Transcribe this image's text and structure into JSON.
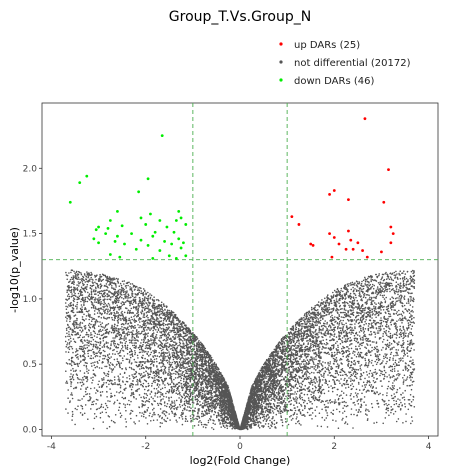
{
  "chart_data": {
    "type": "scatter",
    "title": "Group_T.Vs.Group_N",
    "xlabel": "log2(Fold Change)",
    "ylabel": "-log10(p_value)",
    "xlim": [
      -4.2,
      4.2
    ],
    "ylim": [
      -0.05,
      2.5
    ],
    "xticks": [
      -4,
      -2,
      0,
      2,
      4
    ],
    "yticks": [
      0.0,
      0.5,
      1.0,
      1.5,
      2.0
    ],
    "xtick_labels": [
      "-4",
      "-2",
      "0",
      "2",
      "4"
    ],
    "ytick_labels": [
      "0.0",
      "0.5",
      "1.0",
      "1.5",
      "2.0"
    ],
    "threshold_lines": {
      "x": [
        -1,
        1
      ],
      "y": [
        1.3
      ]
    },
    "grid": false,
    "legend_position": "top-right",
    "series": [
      {
        "name": "up DARs (25)",
        "count": 25,
        "color": "#ff0000",
        "points": [
          [
            2.65,
            2.38
          ],
          [
            3.15,
            1.99
          ],
          [
            2.0,
            1.83
          ],
          [
            1.9,
            1.8
          ],
          [
            2.3,
            1.76
          ],
          [
            3.05,
            1.74
          ],
          [
            1.1,
            1.63
          ],
          [
            1.25,
            1.57
          ],
          [
            3.2,
            1.55
          ],
          [
            3.25,
            1.5
          ],
          [
            1.9,
            1.5
          ],
          [
            2.0,
            1.47
          ],
          [
            2.3,
            1.52
          ],
          [
            2.35,
            1.45
          ],
          [
            2.1,
            1.42
          ],
          [
            2.5,
            1.43
          ],
          [
            1.5,
            1.42
          ],
          [
            1.55,
            1.41
          ],
          [
            3.2,
            1.43
          ],
          [
            2.4,
            1.38
          ],
          [
            2.6,
            1.37
          ],
          [
            3.0,
            1.36
          ],
          [
            2.25,
            1.38
          ],
          [
            1.95,
            1.32
          ],
          [
            2.7,
            1.32
          ]
        ]
      },
      {
        "name": "not differential (20172)",
        "count": 20172,
        "color": "#555555",
        "estimated_envelope": {
          "max_y_at_abs_x": [
            [
              0,
              0
            ],
            [
              0.25,
              0.33
            ],
            [
              0.5,
              0.5
            ],
            [
              0.75,
              0.63
            ],
            [
              1.0,
              0.75
            ],
            [
              1.5,
              0.93
            ],
            [
              2.0,
              1.07
            ],
            [
              2.5,
              1.15
            ],
            [
              3.0,
              1.2
            ],
            [
              3.5,
              1.22
            ],
            [
              3.7,
              1.22
            ]
          ]
        }
      },
      {
        "name": "down DARs (46)",
        "count": 46,
        "color": "#00ee00",
        "points": [
          [
            -1.65,
            2.25
          ],
          [
            -1.95,
            1.92
          ],
          [
            -3.25,
            1.94
          ],
          [
            -3.4,
            1.89
          ],
          [
            -2.15,
            1.82
          ],
          [
            -3.6,
            1.74
          ],
          [
            -2.6,
            1.67
          ],
          [
            -1.3,
            1.67
          ],
          [
            -1.9,
            1.65
          ],
          [
            -1.25,
            1.62
          ],
          [
            -2.75,
            1.6
          ],
          [
            -2.1,
            1.62
          ],
          [
            -1.7,
            1.6
          ],
          [
            -1.35,
            1.6
          ],
          [
            -3.0,
            1.55
          ],
          [
            -3.05,
            1.53
          ],
          [
            -2.8,
            1.54
          ],
          [
            -2.5,
            1.56
          ],
          [
            -2.0,
            1.57
          ],
          [
            -1.55,
            1.55
          ],
          [
            -1.15,
            1.57
          ],
          [
            -2.85,
            1.5
          ],
          [
            -2.6,
            1.48
          ],
          [
            -2.3,
            1.5
          ],
          [
            -1.8,
            1.51
          ],
          [
            -1.4,
            1.51
          ],
          [
            -1.85,
            1.48
          ],
          [
            -3.1,
            1.46
          ],
          [
            -2.65,
            1.44
          ],
          [
            -2.1,
            1.45
          ],
          [
            -1.6,
            1.44
          ],
          [
            -1.3,
            1.46
          ],
          [
            -3.0,
            1.43
          ],
          [
            -2.45,
            1.42
          ],
          [
            -1.95,
            1.41
          ],
          [
            -1.45,
            1.42
          ],
          [
            -1.2,
            1.43
          ],
          [
            -2.2,
            1.38
          ],
          [
            -1.7,
            1.37
          ],
          [
            -1.25,
            1.39
          ],
          [
            -2.75,
            1.34
          ],
          [
            -1.5,
            1.33
          ],
          [
            -1.15,
            1.33
          ],
          [
            -2.55,
            1.32
          ],
          [
            -1.85,
            1.31
          ],
          [
            -1.35,
            1.31
          ]
        ]
      }
    ]
  }
}
